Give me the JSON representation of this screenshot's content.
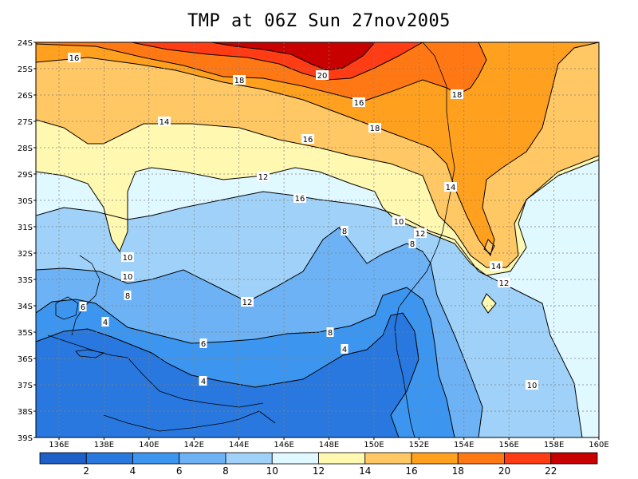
{
  "title": "TMP at 06Z Sun 27nov2005",
  "map": {
    "lat_labels": [
      "24S",
      "25S",
      "26S",
      "27S",
      "28S",
      "29S",
      "30S",
      "31S",
      "32S",
      "33S",
      "34S",
      "35S",
      "36S",
      "37S",
      "38S",
      "39S"
    ],
    "lon_labels": [
      "136E",
      "138E",
      "140E",
      "142E",
      "144E",
      "146E",
      "148E",
      "150E",
      "152E",
      "154E",
      "156E",
      "158E",
      "160E"
    ],
    "contour_labels": [
      "16",
      "18",
      "20",
      "18",
      "16",
      "18",
      "14",
      "16",
      "14",
      "12",
      "16",
      "10",
      "12",
      "10",
      "8",
      "8",
      "12",
      "10",
      "8",
      "14",
      "12",
      "6",
      "8",
      "4",
      "6",
      "4",
      "6",
      "4",
      "10"
    ]
  },
  "colorbar": {
    "labels": [
      "2",
      "4",
      "6",
      "8",
      "10",
      "12",
      "14",
      "16",
      "18",
      "20",
      "22"
    ],
    "colors": [
      "#1e5fc8",
      "#2878e0",
      "#3c96ef",
      "#6cb2f5",
      "#a0d2f9",
      "#e0f8ff",
      "#fff8b0",
      "#ffc864",
      "#ffa01e",
      "#ff7814",
      "#ff3c14",
      "#c80000"
    ]
  }
}
